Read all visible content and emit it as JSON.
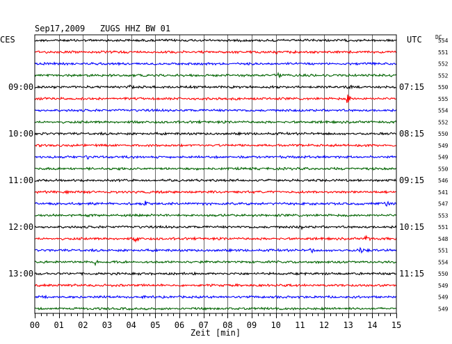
{
  "chart_data": {
    "type": "line",
    "title": "Sep17,2009   ZUGS HHZ BW 01",
    "left_timezone": "CES",
    "right_timezone": "UTC",
    "dc_header": "DC",
    "xlabel": "Zeit [min]",
    "x_ticks": [
      "00",
      "01",
      "02",
      "03",
      "04",
      "05",
      "06",
      "07",
      "08",
      "09",
      "10",
      "11",
      "12",
      "13",
      "14",
      "15"
    ],
    "xlim": [
      0,
      15
    ],
    "minutes_per_trace": 15,
    "grid": true,
    "trace_colors": [
      "#000000",
      "#ff0000",
      "#0000ff",
      "#006400"
    ],
    "left_hour_labels": [
      {
        "trace": 4,
        "label": "09:00"
      },
      {
        "trace": 8,
        "label": "10:00"
      },
      {
        "trace": 12,
        "label": "11:00"
      },
      {
        "trace": 16,
        "label": "12:00"
      },
      {
        "trace": 20,
        "label": "13:00"
      }
    ],
    "right_hour_labels": [
      {
        "trace": 4,
        "label": "07:15"
      },
      {
        "trace": 8,
        "label": "08:15"
      },
      {
        "trace": 12,
        "label": "09:15"
      },
      {
        "trace": 16,
        "label": "10:15"
      },
      {
        "trace": 20,
        "label": "11:15"
      }
    ],
    "dc_values": [
      "554",
      "551",
      "552",
      "552",
      "550",
      "555",
      "554",
      "552",
      "550",
      "549",
      "549",
      "550",
      "546",
      "541",
      "547",
      "553",
      "551",
      "548",
      "551",
      "554",
      "550",
      "549",
      "549",
      "549"
    ],
    "events": [
      {
        "trace": 1,
        "minute": 10.0,
        "amplitude": 3
      },
      {
        "trace": 3,
        "minute": 10.1,
        "amplitude": 4
      },
      {
        "trace": 4,
        "minute": 4.0,
        "amplitude": 6
      },
      {
        "trace": 4,
        "minute": 13.0,
        "amplitude": 3
      },
      {
        "trace": 5,
        "minute": 13.0,
        "amplitude": 8
      },
      {
        "trace": 10,
        "minute": 2.2,
        "amplitude": 4
      },
      {
        "trace": 14,
        "minute": 4.6,
        "amplitude": 4
      },
      {
        "trace": 14,
        "minute": 14.6,
        "amplitude": 4
      },
      {
        "trace": 16,
        "minute": 11.0,
        "amplitude": 4
      },
      {
        "trace": 17,
        "minute": 4.2,
        "amplitude": 4
      },
      {
        "trace": 17,
        "minute": 13.8,
        "amplitude": 6
      },
      {
        "trace": 18,
        "minute": 11.5,
        "amplitude": 4
      },
      {
        "trace": 18,
        "minute": 13.5,
        "amplitude": 5
      },
      {
        "trace": 19,
        "minute": 2.5,
        "amplitude": 4
      }
    ]
  }
}
